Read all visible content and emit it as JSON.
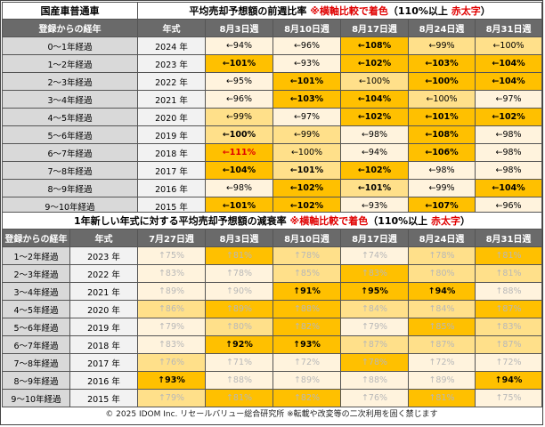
{
  "top": {
    "title_left": "国産車普通車",
    "title_main": "平均売却予想額の前週比率",
    "title_note1": "※横軸比較で着色",
    "title_note2": "（110%以上 ",
    "title_note3": "赤太字",
    "title_note4": "）",
    "headers": [
      "登録からの経年",
      "年式",
      "8月3日週",
      "8月10日週",
      "8月17日週",
      "8月24日週",
      "8月31日週"
    ],
    "rows": [
      {
        "label": "0～1年経過",
        "year": "2024 年",
        "cells": [
          {
            "t": "←94%",
            "bg": "#fff3dd"
          },
          {
            "t": "←96%",
            "bg": "#fff3dd"
          },
          {
            "t": "←108%",
            "bg": "#ffc000",
            "b": true
          },
          {
            "t": "←99%",
            "bg": "#ffe08a"
          },
          {
            "t": "←100%",
            "bg": "#ffe08a"
          }
        ]
      },
      {
        "label": "1～2年経過",
        "year": "2023 年",
        "cells": [
          {
            "t": "←101%",
            "bg": "#ffc000",
            "b": true
          },
          {
            "t": "←93%",
            "bg": "#fff3dd"
          },
          {
            "t": "←102%",
            "bg": "#ffc000",
            "b": true
          },
          {
            "t": "←103%",
            "bg": "#ffc000",
            "b": true
          },
          {
            "t": "←104%",
            "bg": "#ffc000",
            "b": true
          }
        ]
      },
      {
        "label": "2～3年経過",
        "year": "2022 年",
        "cells": [
          {
            "t": "←95%",
            "bg": "#fff3dd"
          },
          {
            "t": "←101%",
            "bg": "#ffc000",
            "b": true
          },
          {
            "t": "←100%",
            "bg": "#ffe08a"
          },
          {
            "t": "←100%",
            "bg": "#ffc000",
            "b": true
          },
          {
            "t": "←104%",
            "bg": "#ffc000",
            "b": true
          }
        ]
      },
      {
        "label": "3～4年経過",
        "year": "2021 年",
        "cells": [
          {
            "t": "←96%",
            "bg": "#fff3dd"
          },
          {
            "t": "←103%",
            "bg": "#ffc000",
            "b": true
          },
          {
            "t": "←104%",
            "bg": "#ffc000",
            "b": true
          },
          {
            "t": "←100%",
            "bg": "#ffe08a"
          },
          {
            "t": "←97%",
            "bg": "#fff3dd"
          }
        ]
      },
      {
        "label": "4～5年経過",
        "year": "2020 年",
        "cells": [
          {
            "t": "←99%",
            "bg": "#ffe08a"
          },
          {
            "t": "←97%",
            "bg": "#fff3dd"
          },
          {
            "t": "←102%",
            "bg": "#ffc000",
            "b": true
          },
          {
            "t": "←101%",
            "bg": "#ffc000",
            "b": true
          },
          {
            "t": "←102%",
            "bg": "#ffc000",
            "b": true
          }
        ]
      },
      {
        "label": "5～6年経過",
        "year": "2019 年",
        "cells": [
          {
            "t": "←100%",
            "bg": "#ffe08a",
            "b": true
          },
          {
            "t": "←99%",
            "bg": "#ffe08a"
          },
          {
            "t": "←98%",
            "bg": "#fff3dd"
          },
          {
            "t": "←108%",
            "bg": "#ffc000",
            "b": true
          },
          {
            "t": "←98%",
            "bg": "#fff3dd"
          }
        ]
      },
      {
        "label": "6～7年経過",
        "year": "2018 年",
        "cells": [
          {
            "t": "←111%",
            "bg": "#ffc000",
            "red": true
          },
          {
            "t": "←100%",
            "bg": "#ffe08a"
          },
          {
            "t": "←94%",
            "bg": "#fff3dd"
          },
          {
            "t": "←106%",
            "bg": "#ffc000",
            "b": true
          },
          {
            "t": "←98%",
            "bg": "#fff3dd"
          }
        ]
      },
      {
        "label": "7～8年経過",
        "year": "2017 年",
        "cells": [
          {
            "t": "←104%",
            "bg": "#ffc000",
            "b": true
          },
          {
            "t": "←101%",
            "bg": "#ffe08a",
            "b": true
          },
          {
            "t": "←102%",
            "bg": "#ffc000",
            "b": true
          },
          {
            "t": "←98%",
            "bg": "#fff3dd"
          },
          {
            "t": "←98%",
            "bg": "#fff3dd"
          }
        ]
      },
      {
        "label": "8～9年経過",
        "year": "2016 年",
        "cells": [
          {
            "t": "←98%",
            "bg": "#fff3dd"
          },
          {
            "t": "←102%",
            "bg": "#ffc000",
            "b": true
          },
          {
            "t": "←101%",
            "bg": "#ffe08a",
            "b": true
          },
          {
            "t": "←99%",
            "bg": "#fff3dd"
          },
          {
            "t": "←104%",
            "bg": "#ffc000",
            "b": true
          }
        ]
      },
      {
        "label": "9～10年経過",
        "year": "2015 年",
        "cells": [
          {
            "t": "←101%",
            "bg": "#ffc000",
            "b": true
          },
          {
            "t": "←102%",
            "bg": "#ffc000",
            "b": true
          },
          {
            "t": "←93%",
            "bg": "#fff3dd"
          },
          {
            "t": "←107%",
            "bg": "#ffc000",
            "b": true
          },
          {
            "t": "←96%",
            "bg": "#fff3dd"
          }
        ]
      }
    ]
  },
  "bottom": {
    "title_main": "1年新しい年式に対する平均売却予想額の減衰率",
    "title_note1": "※横軸比較で着色",
    "title_note2": "（110%以上 ",
    "title_note3": "赤太字",
    "title_note4": "）",
    "headers": [
      "登録からの経年",
      "年式",
      "7月27日週",
      "8月3日週",
      "8月10日週",
      "8月17日週",
      "8月24日週",
      "8月31日週"
    ],
    "rows": [
      {
        "label": "1～2年経過",
        "year": "2023 年",
        "cells": [
          {
            "t": "↑75%",
            "bg": "#fff3dd",
            "lt": true
          },
          {
            "t": "↑81%",
            "bg": "#ffc000",
            "lt": true
          },
          {
            "t": "↑78%",
            "bg": "#ffe08a",
            "lt": true
          },
          {
            "t": "↑74%",
            "bg": "#fff3dd",
            "lt": true
          },
          {
            "t": "↑78%",
            "bg": "#ffe08a",
            "lt": true
          },
          {
            "t": "↑81%",
            "bg": "#ffc000",
            "lt": true
          }
        ]
      },
      {
        "label": "2～3年経過",
        "year": "2022 年",
        "cells": [
          {
            "t": "↑83%",
            "bg": "#fff3dd",
            "lt": true
          },
          {
            "t": "↑78%",
            "bg": "#fff3dd",
            "lt": true
          },
          {
            "t": "↑85%",
            "bg": "#ffe08a",
            "lt": true
          },
          {
            "t": "↑83%",
            "bg": "#ffc000",
            "lt": true
          },
          {
            "t": "↑80%",
            "bg": "#ffe08a",
            "lt": true
          },
          {
            "t": "↑81%",
            "bg": "#ffe08a",
            "lt": true
          }
        ]
      },
      {
        "label": "3～4年経過",
        "year": "2021 年",
        "cells": [
          {
            "t": "↑89%",
            "bg": "#fff3dd",
            "lt": true
          },
          {
            "t": "↑90%",
            "bg": "#fff3dd",
            "lt": true
          },
          {
            "t": "↑91%",
            "bg": "#ffc000",
            "b": true
          },
          {
            "t": "↑95%",
            "bg": "#ffc000",
            "b": true
          },
          {
            "t": "↑94%",
            "bg": "#ffc000",
            "b": true
          },
          {
            "t": "↑88%",
            "bg": "#fff3dd",
            "lt": true
          }
        ]
      },
      {
        "label": "4～5年経過",
        "year": "2020 年",
        "cells": [
          {
            "t": "↑86%",
            "bg": "#ffe08a",
            "lt": true
          },
          {
            "t": "↑89%",
            "bg": "#ffc000",
            "lt": true
          },
          {
            "t": "↑88%",
            "bg": "#ffc000",
            "lt": true
          },
          {
            "t": "↑84%",
            "bg": "#ffe08a",
            "lt": true
          },
          {
            "t": "↑84%",
            "bg": "#ffe08a",
            "lt": true
          },
          {
            "t": "↑87%",
            "bg": "#ffc000",
            "lt": true
          }
        ]
      },
      {
        "label": "5～6年経過",
        "year": "2019 年",
        "cells": [
          {
            "t": "↑79%",
            "bg": "#fff3dd",
            "lt": true
          },
          {
            "t": "↑80%",
            "bg": "#ffe08a",
            "lt": true
          },
          {
            "t": "↑82%",
            "bg": "#ffc000",
            "lt": true
          },
          {
            "t": "↑79%",
            "bg": "#fff3dd",
            "lt": true
          },
          {
            "t": "↑85%",
            "bg": "#ffc000",
            "lt": true
          },
          {
            "t": "↑83%",
            "bg": "#ffe08a",
            "lt": true
          }
        ]
      },
      {
        "label": "6～7年経過",
        "year": "2018 年",
        "cells": [
          {
            "t": "↑83%",
            "bg": "#fff3dd",
            "lt": true
          },
          {
            "t": "↑92%",
            "bg": "#ffc000",
            "b": true
          },
          {
            "t": "↑93%",
            "bg": "#ffc000",
            "b": true
          },
          {
            "t": "↑87%",
            "bg": "#ffe08a",
            "lt": true
          },
          {
            "t": "↑87%",
            "bg": "#ffe08a",
            "lt": true
          },
          {
            "t": "↑87%",
            "bg": "#ffe08a",
            "lt": true
          }
        ]
      },
      {
        "label": "7～8年経過",
        "year": "2017 年",
        "cells": [
          {
            "t": "↑76%",
            "bg": "#ffe08a",
            "lt": true
          },
          {
            "t": "↑71%",
            "bg": "#fff3dd",
            "lt": true
          },
          {
            "t": "↑72%",
            "bg": "#fff3dd",
            "lt": true
          },
          {
            "t": "↑78%",
            "bg": "#ffc000",
            "lt": true
          },
          {
            "t": "↑72%",
            "bg": "#fff3dd",
            "lt": true
          },
          {
            "t": "↑72%",
            "bg": "#fff3dd",
            "lt": true
          }
        ]
      },
      {
        "label": "8～9年経過",
        "year": "2016 年",
        "cells": [
          {
            "t": "↑93%",
            "bg": "#ffc000",
            "b": true
          },
          {
            "t": "↑88%",
            "bg": "#fff3dd",
            "lt": true
          },
          {
            "t": "↑89%",
            "bg": "#fff3dd",
            "lt": true
          },
          {
            "t": "↑88%",
            "bg": "#fff3dd",
            "lt": true
          },
          {
            "t": "↑89%",
            "bg": "#fff3dd",
            "lt": true
          },
          {
            "t": "↑94%",
            "bg": "#ffc000",
            "b": true
          }
        ]
      },
      {
        "label": "9～10年経過",
        "year": "2015 年",
        "cells": [
          {
            "t": "↑79%",
            "bg": "#ffe08a",
            "lt": true
          },
          {
            "t": "↑81%",
            "bg": "#ffc000",
            "lt": true
          },
          {
            "t": "↑82%",
            "bg": "#ffc000",
            "lt": true
          },
          {
            "t": "↑76%",
            "bg": "#fff3dd",
            "lt": true
          },
          {
            "t": "↑81%",
            "bg": "#ffc000",
            "lt": true
          },
          {
            "t": "↑75%",
            "bg": "#fff3dd",
            "lt": true
          }
        ]
      }
    ]
  },
  "footer": "© 2025 IDOM Inc. リセールバリュー総合研究所 ※転載や改変等の二次利用を固く禁じます"
}
